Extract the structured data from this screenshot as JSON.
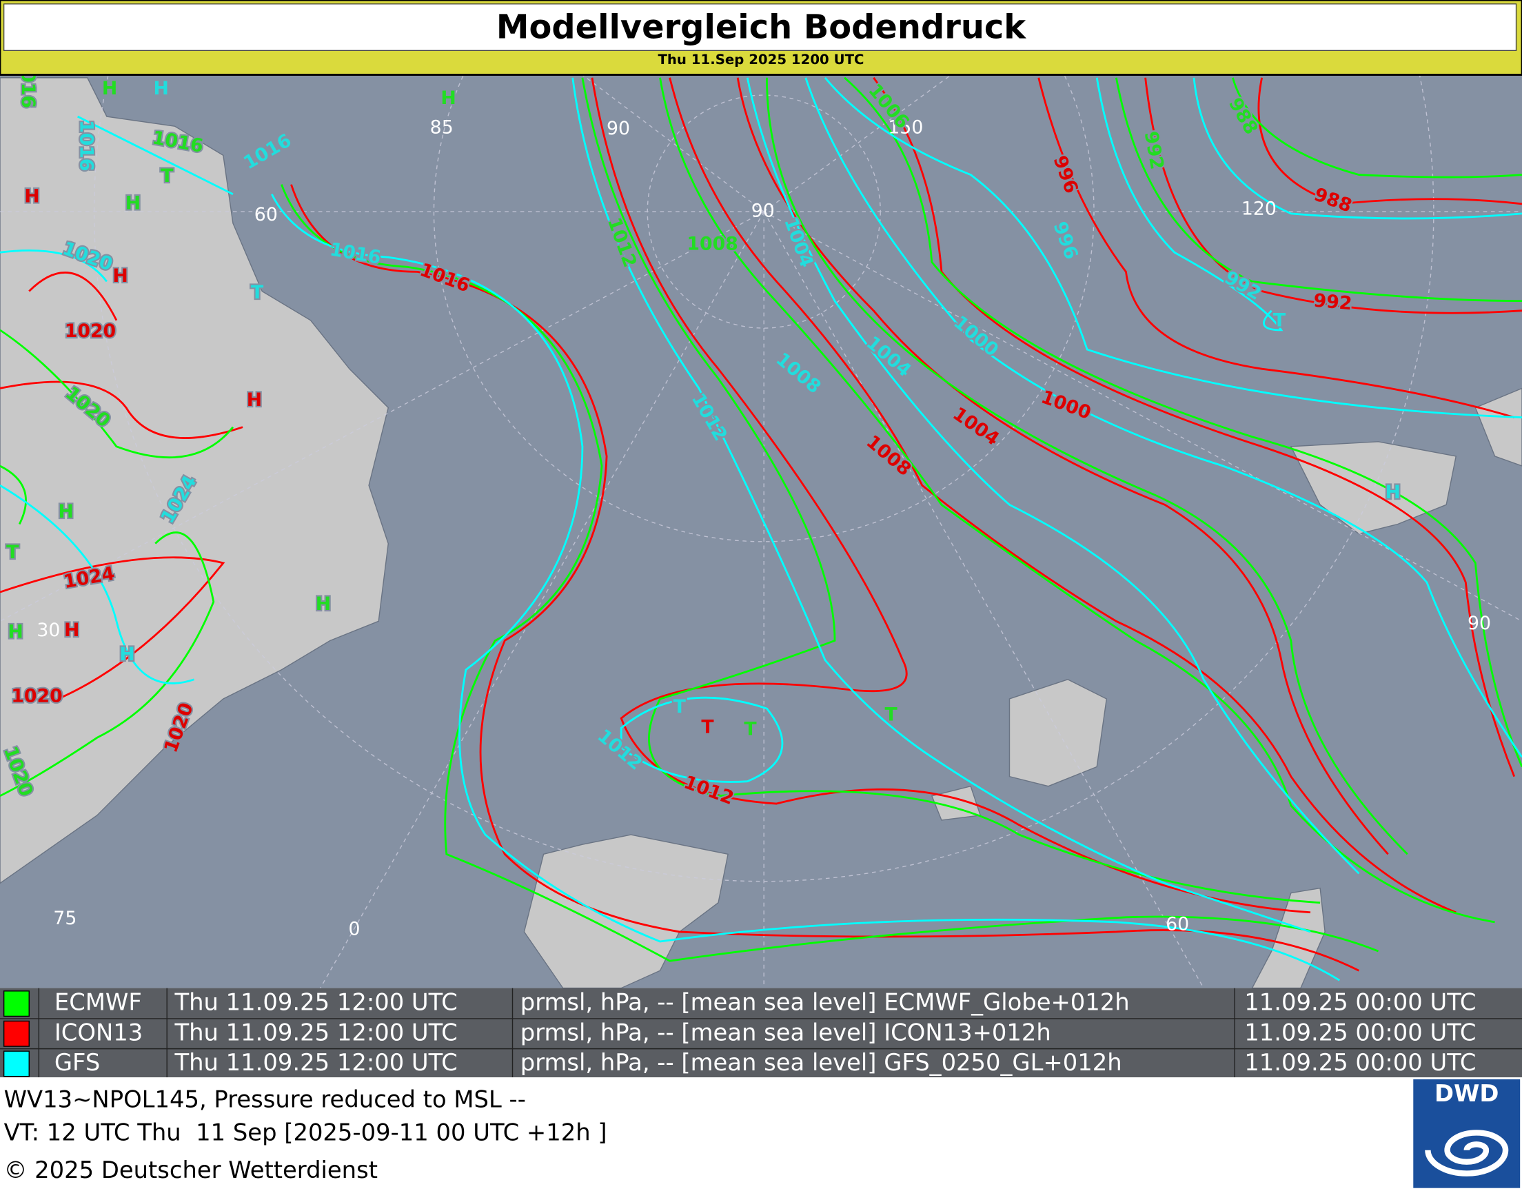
{
  "header": {
    "title": "Modellvergleich Bodendruck",
    "subtitle": "Thu 11.Sep 2025 1200 UTC"
  },
  "map": {
    "graticule_labels": [
      "85",
      "90",
      "150",
      "90",
      "60",
      "120",
      "30",
      "90",
      "75",
      "0",
      "60"
    ],
    "pressure_labels": [
      "1016",
      "1016",
      "1008",
      "1012",
      "1006",
      "988",
      "992",
      "1020",
      "1020",
      "1016",
      "1016",
      "1016",
      "1020",
      "1024",
      "1012",
      "1008",
      "1004",
      "1000",
      "996",
      "992",
      "1012",
      "1004",
      "1016",
      "1020",
      "1024",
      "1020",
      "1020",
      "1008",
      "1004",
      "1000",
      "996",
      "988",
      "992",
      "1012"
    ],
    "centers": [
      "H",
      "H",
      "T",
      "H",
      "T",
      "H",
      "H",
      "T",
      "T",
      "H",
      "T",
      "H",
      "H",
      "H",
      "H",
      "T",
      "H",
      "H",
      "H",
      "T",
      "T",
      "T"
    ]
  },
  "legend": [
    {
      "name": "ECMWF",
      "valid": "Thu 11.09.25 12:00 UTC",
      "field": "prmsl, hPa, -- [mean sea level] ECMWF_Globe+012h",
      "run": "11.09.25 00:00 UTC",
      "color": "#00ff00"
    },
    {
      "name": "ICON13",
      "valid": "Thu 11.09.25 12:00 UTC",
      "field": "prmsl, hPa, -- [mean sea level] ICON13+012h",
      "run": "11.09.25 00:00 UTC",
      "color": "#ff0000"
    },
    {
      "name": "GFS",
      "valid": "Thu 11.09.25 12:00 UTC",
      "field": "prmsl, hPa, -- [mean sea level] GFS_0250_GL+012h",
      "run": "11.09.25 00:00 UTC",
      "color": "#00ffff"
    }
  ],
  "footer": {
    "lines": [
      "WV13~NPOL145, Pressure reduced to MSL --",
      "VT: 12 UTC Thu  11 Sep [2025-09-11 00 UTC +12h ]",
      "© 2025 Deutscher Wetterdienst"
    ],
    "logo": "DWD"
  }
}
